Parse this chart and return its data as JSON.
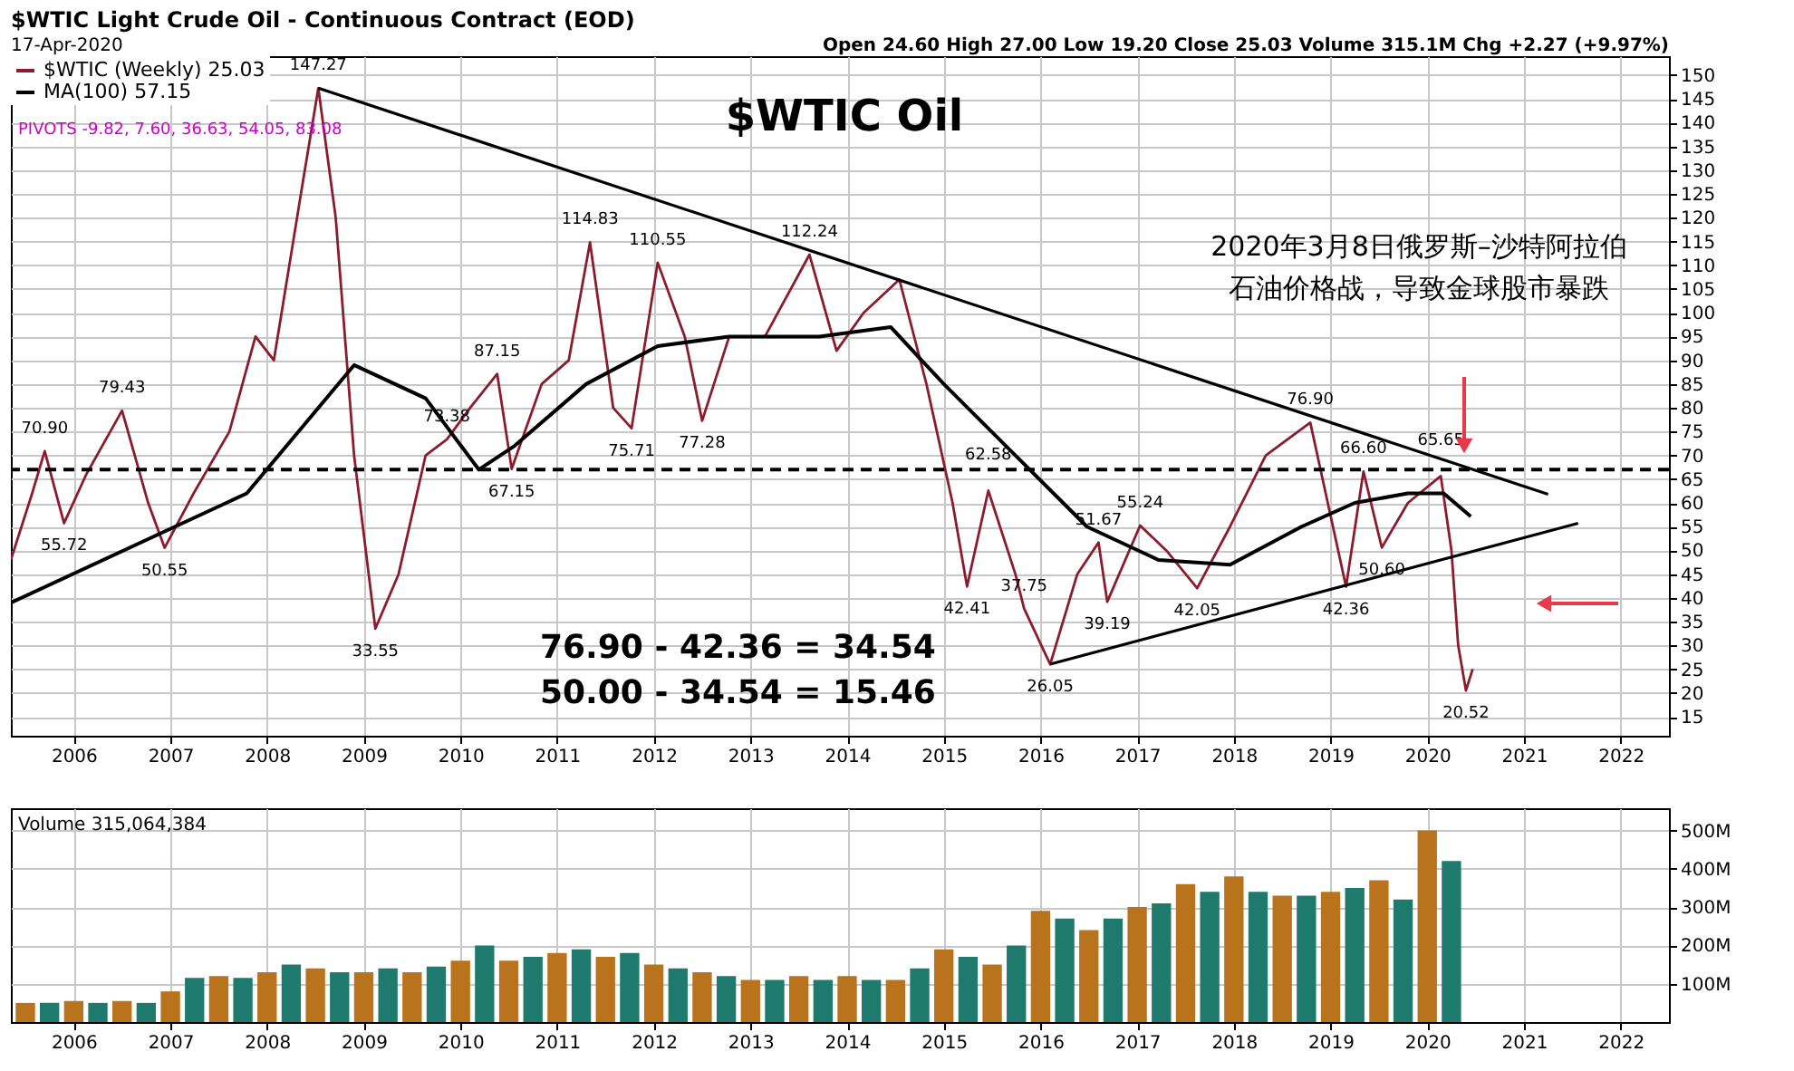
{
  "chart_data": [
    {
      "type": "line",
      "title": "$WTIC Oil",
      "annotations": [
        "$WTIC Light Crude Oil - Continuous Contract (EOD)",
        "17-Apr-2020",
        "Open 24.60 High 27.00 Low 19.20 Close 25.03 Volume 315.1M Chg +2.27 (+9.97%)",
        "PIVOTS -9.82, 7.60, 36.63, 54.05, 83.08",
        "76.90 - 42.36 = 34.54",
        "50.00 - 34.54 = 15.46",
        "2020年3月8日俄罗斯–沙特阿拉伯",
        "石油价格战，导致金球股市暴跌",
        {
          "text": "70.90",
          "x": 2005.7,
          "y": 70.9
        },
        {
          "text": "55.72",
          "x": 2005.9,
          "y": 55.72
        },
        {
          "text": "79.43",
          "x": 2006.5,
          "y": 79.43
        },
        {
          "text": "50.55",
          "x": 2006.94,
          "y": 50.55
        },
        {
          "text": "147.27",
          "x": 2008.53,
          "y": 147.27
        },
        {
          "text": "33.55",
          "x": 2009.12,
          "y": 33.55
        },
        {
          "text": "73.38",
          "x": 2009.86,
          "y": 73.38
        },
        {
          "text": "87.15",
          "x": 2010.38,
          "y": 87.15
        },
        {
          "text": "67.15",
          "x": 2010.53,
          "y": 67.15
        },
        {
          "text": "114.83",
          "x": 2011.34,
          "y": 114.83
        },
        {
          "text": "75.71",
          "x": 2011.77,
          "y": 75.71
        },
        {
          "text": "110.55",
          "x": 2012.04,
          "y": 110.55
        },
        {
          "text": "77.28",
          "x": 2012.5,
          "y": 77.28
        },
        {
          "text": "112.24",
          "x": 2013.61,
          "y": 112.24
        },
        {
          "text": "42.41",
          "x": 2015.24,
          "y": 42.41
        },
        {
          "text": "62.58",
          "x": 2015.46,
          "y": 62.58
        },
        {
          "text": "37.75",
          "x": 2015.83,
          "y": 37.75
        },
        {
          "text": "26.05",
          "x": 2016.1,
          "y": 26.05
        },
        {
          "text": "51.67",
          "x": 2016.6,
          "y": 51.67
        },
        {
          "text": "39.19",
          "x": 2016.69,
          "y": 39.19
        },
        {
          "text": "55.24",
          "x": 2017.03,
          "y": 55.24
        },
        {
          "text": "42.05",
          "x": 2017.62,
          "y": 42.05
        },
        {
          "text": "76.90",
          "x": 2018.79,
          "y": 76.9
        },
        {
          "text": "42.36",
          "x": 2019.16,
          "y": 42.36
        },
        {
          "text": "66.60",
          "x": 2019.34,
          "y": 66.6
        },
        {
          "text": "50.60",
          "x": 2019.53,
          "y": 50.6
        },
        {
          "text": "65.65",
          "x": 2020.14,
          "y": 65.65
        },
        {
          "text": "20.52",
          "x": 2020.4,
          "y": 20.52
        }
      ],
      "xlim": [
        2005.35,
        2022.5
      ],
      "xticks": [
        2006,
        2007,
        2008,
        2009,
        2010,
        2011,
        2012,
        2013,
        2014,
        2015,
        2016,
        2017,
        2018,
        2019,
        2020,
        2021,
        2022
      ],
      "ylim": [
        11,
        154
      ],
      "yticks": [
        15,
        20,
        25,
        30,
        35,
        40,
        45,
        50,
        55,
        60,
        65,
        70,
        75,
        80,
        85,
        90,
        95,
        100,
        105,
        110,
        115,
        120,
        125,
        130,
        135,
        140,
        145,
        150
      ],
      "grid": true,
      "legend": "top left",
      "series": [
        {
          "name": "$WTIC (Weekly) 25.03",
          "color": "#8a1c2e",
          "x": [
            2005.35,
            2005.57,
            2005.7,
            2005.9,
            2006.13,
            2006.5,
            2006.77,
            2006.94,
            2007.24,
            2007.61,
            2007.88,
            2008.07,
            2008.35,
            2008.53,
            2008.71,
            2008.9,
            2009.12,
            2009.36,
            2009.64,
            2009.86,
            2010.1,
            2010.38,
            2010.53,
            2010.84,
            2011.12,
            2011.34,
            2011.58,
            2011.77,
            2012.04,
            2012.32,
            2012.5,
            2012.78,
            2013.15,
            2013.61,
            2013.89,
            2014.17,
            2014.54,
            2014.82,
            2015.09,
            2015.24,
            2015.46,
            2015.74,
            2015.83,
            2016.1,
            2016.38,
            2016.6,
            2016.69,
            2017.03,
            2017.3,
            2017.62,
            2017.96,
            2018.33,
            2018.79,
            2019.16,
            2019.34,
            2019.53,
            2019.8,
            2020.14,
            2020.25,
            2020.32,
            2020.4,
            2020.47
          ],
          "values": [
            48,
            62,
            70.9,
            55.72,
            66,
            79.43,
            60,
            50.55,
            62,
            75,
            95,
            90,
            125,
            147.27,
            120,
            70,
            33.55,
            45,
            70,
            73.38,
            80,
            87.15,
            67.15,
            85,
            90,
            114.83,
            80,
            75.71,
            110.55,
            95,
            77.28,
            95,
            95,
            112.24,
            92,
            100,
            107,
            85,
            60,
            42.41,
            62.58,
            45,
            37.75,
            26.05,
            45,
            51.67,
            39.19,
            55.24,
            50,
            42.05,
            55,
            70,
            76.9,
            42.36,
            66.6,
            50.6,
            60,
            65.65,
            50,
            30,
            20.52,
            25.03
          ]
        },
        {
          "name": "MA(100) 57.15",
          "color": "#000000",
          "x": [
            2005.35,
            2007.79,
            2008.9,
            2009.64,
            2010.19,
            2010.56,
            2011.3,
            2012.04,
            2012.78,
            2013.71,
            2014.45,
            2015.0,
            2015.74,
            2016.48,
            2017.22,
            2017.96,
            2018.7,
            2019.25,
            2019.8,
            2020.17,
            2020.45
          ],
          "values": [
            39,
            62,
            89,
            82,
            67,
            72,
            85,
            93,
            95,
            95,
            97,
            85,
            70,
            55,
            48,
            47,
            55,
            60,
            62,
            62,
            57.15
          ]
        },
        {
          "type": "line",
          "color": "#000000",
          "x": [
            2008.53,
            2021.25
          ],
          "values": [
            147.27,
            61.8
          ]
        },
        {
          "type": "line",
          "color": "#000000",
          "x": [
            2016.1,
            2021.56
          ],
          "values": [
            26.05,
            55.7
          ]
        }
      ],
      "ref_lines": [
        {
          "axis": "y",
          "value": 67,
          "color": "#000000",
          "line_style": "dashed"
        }
      ]
    },
    {
      "type": "bar",
      "annotations": [
        "Volume 315,064,384"
      ],
      "xlim": [
        2005.35,
        2022.5
      ],
      "xticks": [
        2006,
        2007,
        2008,
        2009,
        2010,
        2011,
        2012,
        2013,
        2014,
        2015,
        2016,
        2017,
        2018,
        2019,
        2020,
        2021,
        2022
      ],
      "ylim": [
        0,
        558
      ],
      "yticks": [
        {
          "value": 100,
          "label": "100M"
        },
        {
          "value": 200,
          "label": "200M"
        },
        {
          "value": 300,
          "label": "300M"
        },
        {
          "value": 400,
          "label": "400M"
        },
        {
          "value": 500,
          "label": "500M"
        }
      ],
      "grid": true,
      "x": [
        2005.5,
        2005.75,
        2006,
        2006.25,
        2006.5,
        2006.75,
        2007,
        2007.25,
        2007.5,
        2007.75,
        2008,
        2008.25,
        2008.5,
        2008.75,
        2009,
        2009.25,
        2009.5,
        2009.75,
        2010,
        2010.25,
        2010.5,
        2010.75,
        2011,
        2011.25,
        2011.5,
        2011.75,
        2012,
        2012.25,
        2012.5,
        2012.75,
        2013,
        2013.25,
        2013.5,
        2013.75,
        2014,
        2014.25,
        2014.5,
        2014.75,
        2015,
        2015.25,
        2015.5,
        2015.75,
        2016,
        2016.25,
        2016.5,
        2016.75,
        2017,
        2017.25,
        2017.5,
        2017.75,
        2018,
        2018.25,
        2018.5,
        2018.75,
        2019,
        2019.25,
        2019.5,
        2019.75,
        2020,
        2020.25
      ],
      "values": [
        50,
        50,
        55,
        50,
        55,
        50,
        80,
        115,
        120,
        115,
        130,
        150,
        140,
        130,
        130,
        140,
        130,
        145,
        160,
        200,
        160,
        170,
        180,
        190,
        170,
        180,
        150,
        140,
        130,
        120,
        110,
        110,
        120,
        110,
        120,
        110,
        110,
        140,
        190,
        170,
        150,
        200,
        290,
        270,
        240,
        270,
        300,
        310,
        360,
        340,
        380,
        340,
        330,
        330,
        340,
        350,
        370,
        320,
        500,
        420
      ],
      "colors": [
        "#b8731c",
        "#1f7a6e",
        "#b8731c",
        "#1f7a6e",
        "#b8731c",
        "#1f7a6e",
        "#b8731c",
        "#1f7a6e",
        "#b8731c",
        "#1f7a6e",
        "#b8731c",
        "#1f7a6e",
        "#b8731c",
        "#1f7a6e",
        "#b8731c",
        "#1f7a6e",
        "#b8731c",
        "#1f7a6e",
        "#b8731c",
        "#1f7a6e",
        "#b8731c",
        "#1f7a6e",
        "#b8731c",
        "#1f7a6e",
        "#b8731c",
        "#1f7a6e",
        "#b8731c",
        "#1f7a6e",
        "#b8731c",
        "#1f7a6e",
        "#b8731c",
        "#1f7a6e",
        "#b8731c",
        "#1f7a6e",
        "#b8731c",
        "#1f7a6e",
        "#b8731c",
        "#1f7a6e",
        "#b8731c",
        "#1f7a6e",
        "#b8731c",
        "#1f7a6e",
        "#b8731c",
        "#1f7a6e",
        "#b8731c",
        "#1f7a6e",
        "#b8731c",
        "#1f7a6e",
        "#b8731c",
        "#1f7a6e",
        "#b8731c",
        "#1f7a6e",
        "#b8731c",
        "#1f7a6e",
        "#b8731c",
        "#1f7a6e",
        "#b8731c",
        "#1f7a6e",
        "#b8731c",
        "#1f7a6e"
      ]
    }
  ]
}
